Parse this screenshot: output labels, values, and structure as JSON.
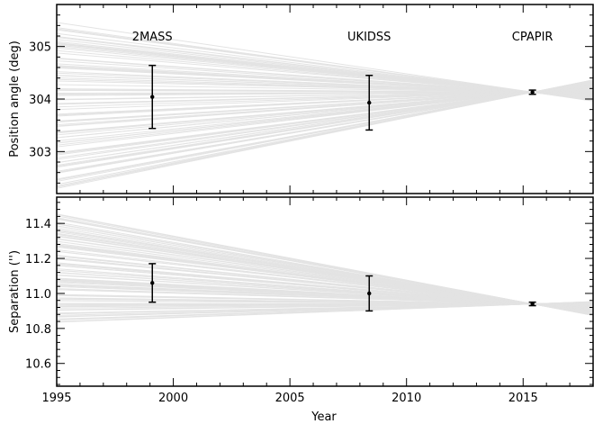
{
  "chart_data": [
    {
      "type": "scatter",
      "panel": "top",
      "xlim": [
        1995,
        2018
      ],
      "ylim": [
        302.2,
        305.8
      ],
      "xlabel": "",
      "ylabel": "Position angle (deg)",
      "yticks": [
        303,
        304,
        305
      ],
      "x_tick_labels_visible": false,
      "grid": false,
      "series": [
        {
          "name": "",
          "kind": "points_with_error_bars",
          "points": [
            {
              "label": "2MASS",
              "x": 1999.1,
              "y": 304.04,
              "yerr": 0.6
            },
            {
              "label": "UKIDSS",
              "x": 2008.4,
              "y": 303.93,
              "yerr": 0.52
            },
            {
              "label": "CPAPIR",
              "x": 2015.4,
              "y": 304.13,
              "yerr": 0.04
            }
          ]
        }
      ],
      "fan": {
        "kind": "background_tracks",
        "anchor_x": 2015.4,
        "anchor_y": 304.13,
        "y_at_1995_range": [
          302.3,
          305.4
        ],
        "color": "#e3e3e3"
      }
    },
    {
      "type": "scatter",
      "panel": "bottom",
      "xlim": [
        1995,
        2018
      ],
      "ylim": [
        10.47,
        11.55
      ],
      "xlabel": "Year",
      "ylabel": "Separation ('')",
      "yticks": [
        10.6,
        10.8,
        11.0,
        11.2,
        11.4
      ],
      "xticks": [
        1995,
        2000,
        2005,
        2010,
        2015
      ],
      "grid": false,
      "series": [
        {
          "name": "",
          "kind": "points_with_error_bars",
          "points": [
            {
              "label": "2MASS",
              "x": 1999.1,
              "y": 11.06,
              "yerr": 0.11
            },
            {
              "label": "UKIDSS",
              "x": 2008.4,
              "y": 11.0,
              "yerr": 0.1
            },
            {
              "label": "CPAPIR",
              "x": 2015.4,
              "y": 10.94,
              "yerr": 0.01
            }
          ]
        }
      ],
      "fan": {
        "kind": "background_tracks",
        "anchor_x": 2015.4,
        "anchor_y": 10.94,
        "y_at_1995_range": [
          10.83,
          11.45
        ],
        "color": "#e3e3e3"
      }
    }
  ],
  "colors": {
    "fan": "#e3e3e3",
    "points": "#000000",
    "axes": "#000000"
  }
}
